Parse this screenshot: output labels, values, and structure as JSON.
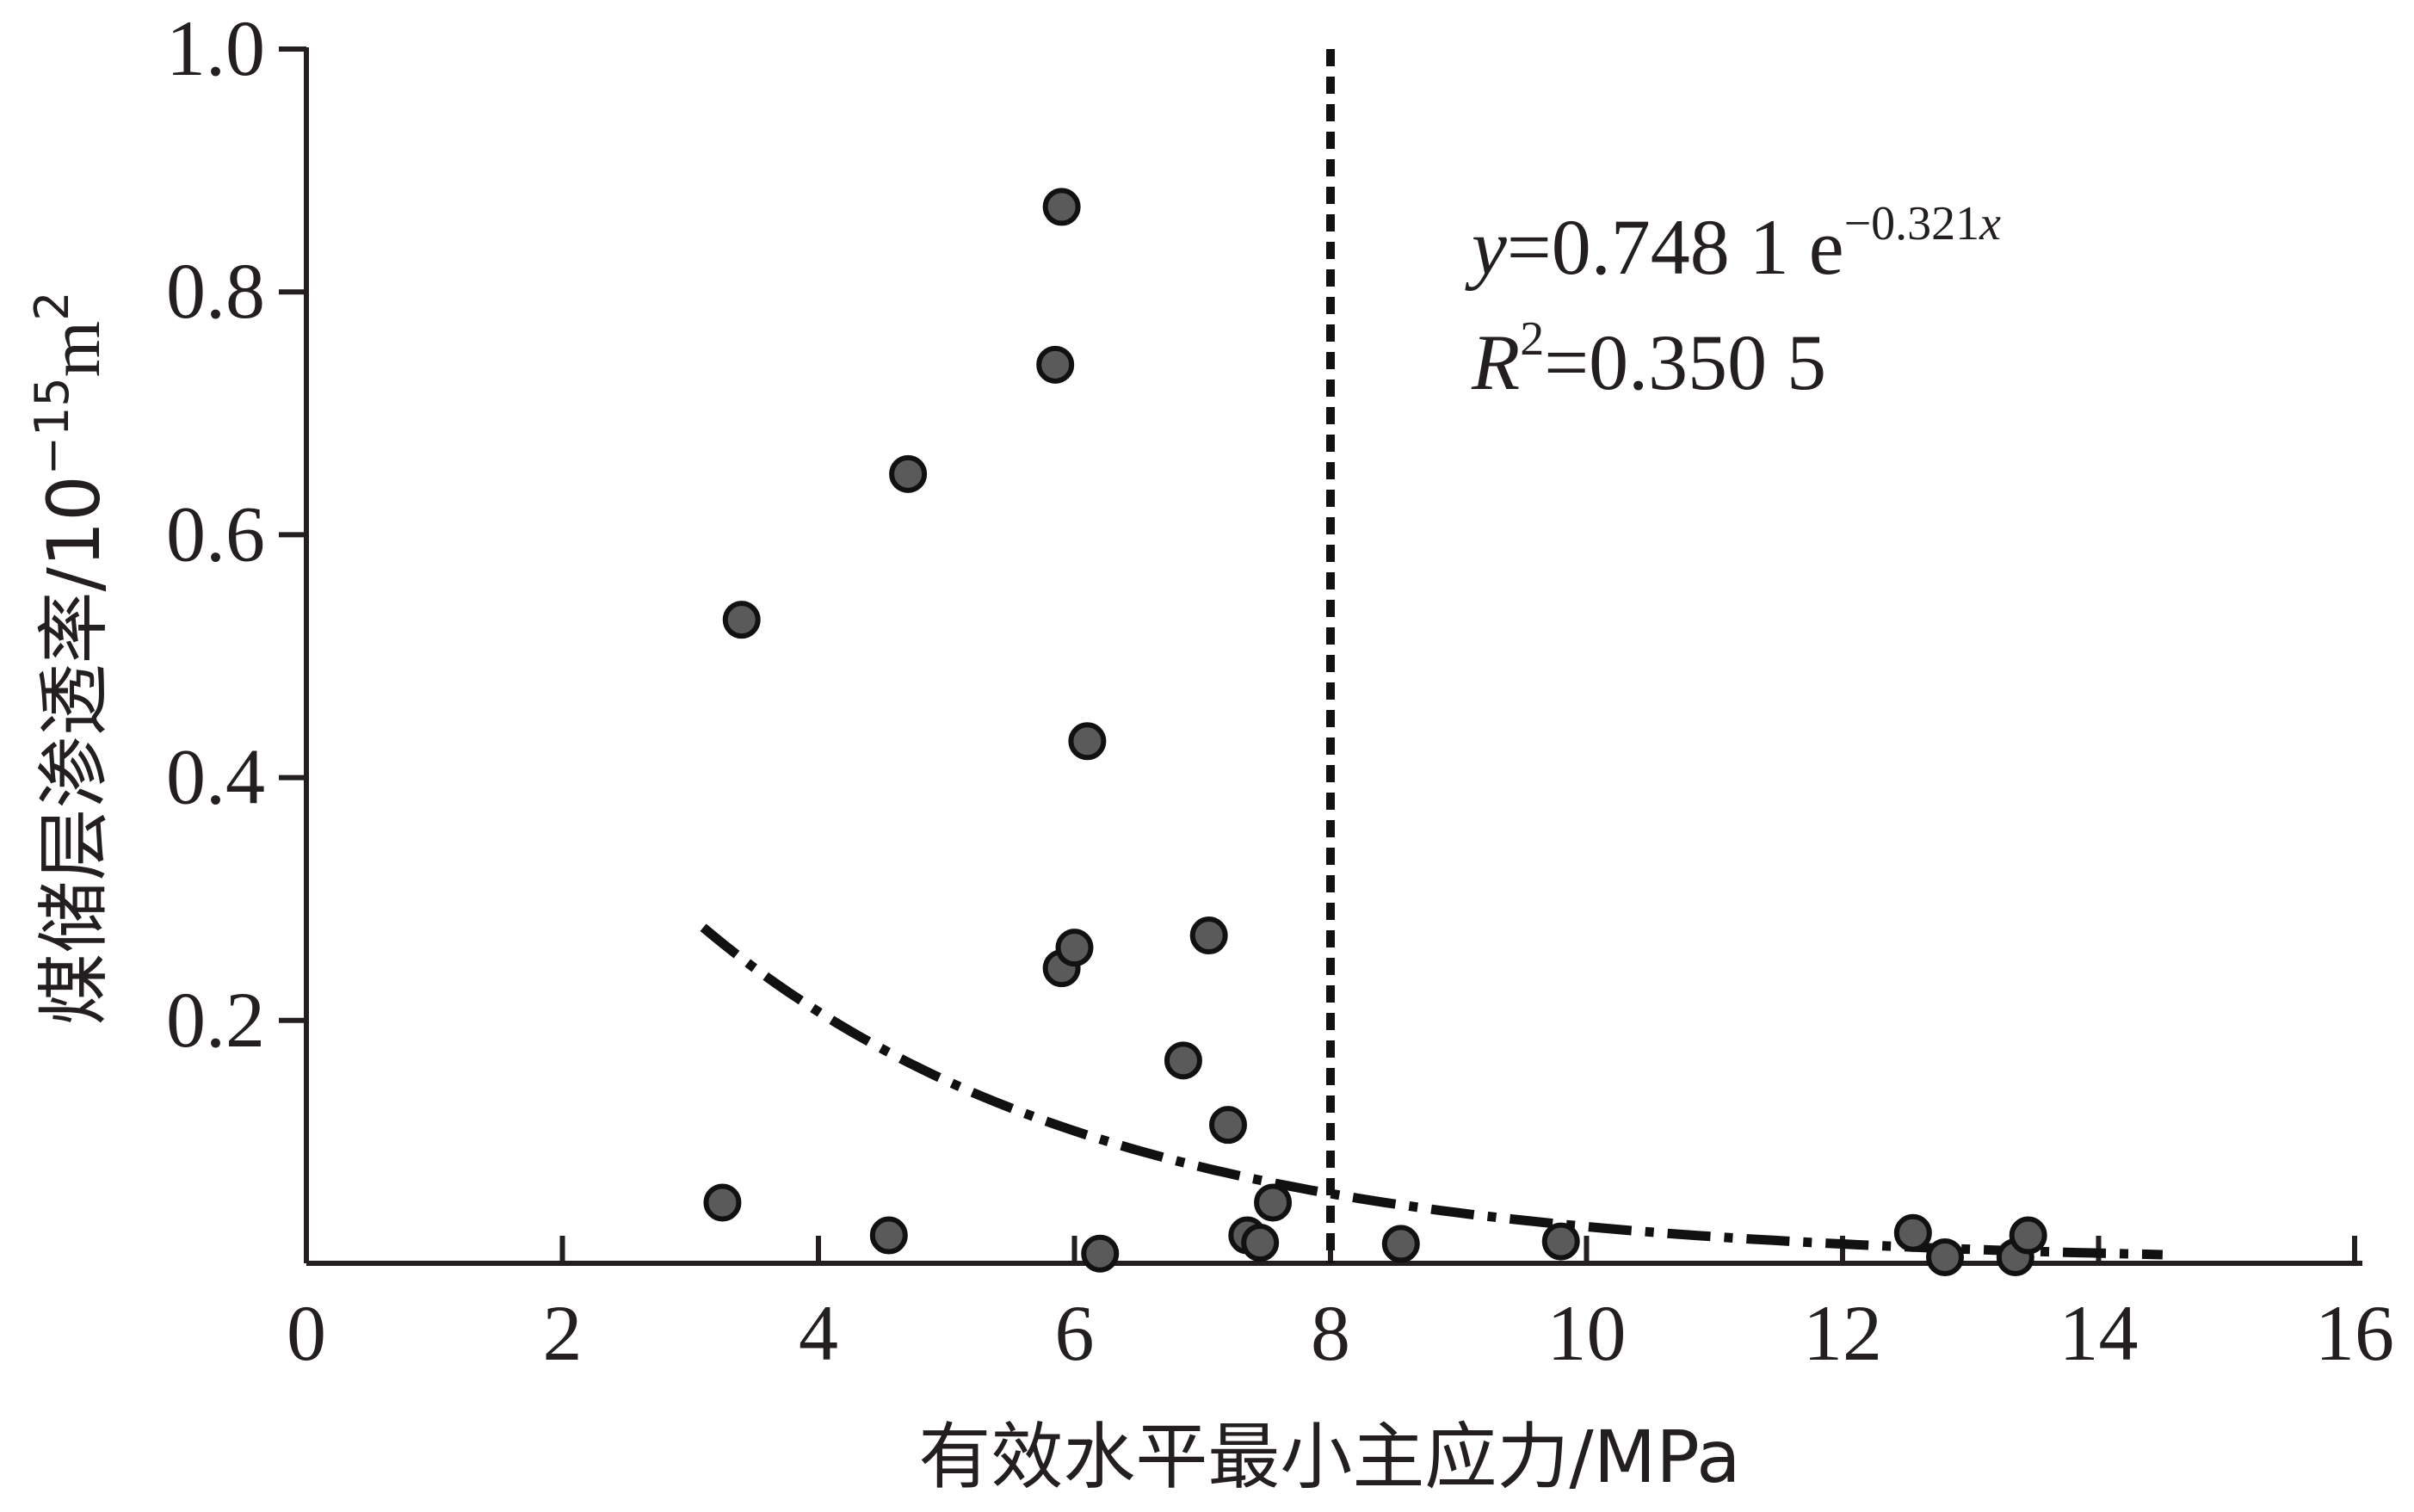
{
  "chart_data": {
    "type": "scatter",
    "xlabel": "有效水平最小主应力/MPa",
    "ylabel_main": "煤储层渗透率/10",
    "ylabel_exp": "−15",
    "ylabel_unit": "m",
    "ylabel_unit_exp": "2",
    "xlim": [
      0,
      16
    ],
    "ylim": [
      0,
      1.0
    ],
    "x_ticks": [
      0,
      2,
      4,
      6,
      8,
      10,
      12,
      14,
      16
    ],
    "x_tick_labels": [
      "0",
      "2",
      "4",
      "6",
      "8",
      "10",
      "12",
      "14",
      "16"
    ],
    "y_ticks": [
      0.2,
      0.4,
      0.6,
      0.8,
      1.0
    ],
    "y_tick_labels": [
      "0.2",
      "0.4",
      "0.6",
      "0.8",
      "1.0"
    ],
    "grid": false,
    "reference_line_x": 8,
    "points": [
      {
        "x": 3.25,
        "y": 0.05
      },
      {
        "x": 3.4,
        "y": 0.53
      },
      {
        "x": 4.55,
        "y": 0.023
      },
      {
        "x": 4.7,
        "y": 0.65
      },
      {
        "x": 5.85,
        "y": 0.74
      },
      {
        "x": 5.9,
        "y": 0.87
      },
      {
        "x": 5.9,
        "y": 0.243
      },
      {
        "x": 6.0,
        "y": 0.26
      },
      {
        "x": 6.1,
        "y": 0.43
      },
      {
        "x": 6.2,
        "y": 0.008
      },
      {
        "x": 6.85,
        "y": 0.167
      },
      {
        "x": 7.05,
        "y": 0.27
      },
      {
        "x": 7.2,
        "y": 0.114
      },
      {
        "x": 7.35,
        "y": 0.023
      },
      {
        "x": 7.45,
        "y": 0.017
      },
      {
        "x": 7.55,
        "y": 0.05
      },
      {
        "x": 8.55,
        "y": 0.016
      },
      {
        "x": 9.8,
        "y": 0.018
      },
      {
        "x": 12.55,
        "y": 0.025
      },
      {
        "x": 12.8,
        "y": 0.005
      },
      {
        "x": 13.35,
        "y": 0.005
      },
      {
        "x": 13.45,
        "y": 0.023
      }
    ],
    "fit": {
      "a": 0.7481,
      "b": -0.321,
      "x_range": [
        3.1,
        14.5
      ]
    },
    "equation": {
      "y_symbol": "y",
      "line1_rest": "=0.748 1 e",
      "line1_exp": "−0.321",
      "line1_exp_var": "x",
      "r_symbol": "R",
      "r_exp": "2",
      "line2_rest": "=0.350 5"
    }
  }
}
